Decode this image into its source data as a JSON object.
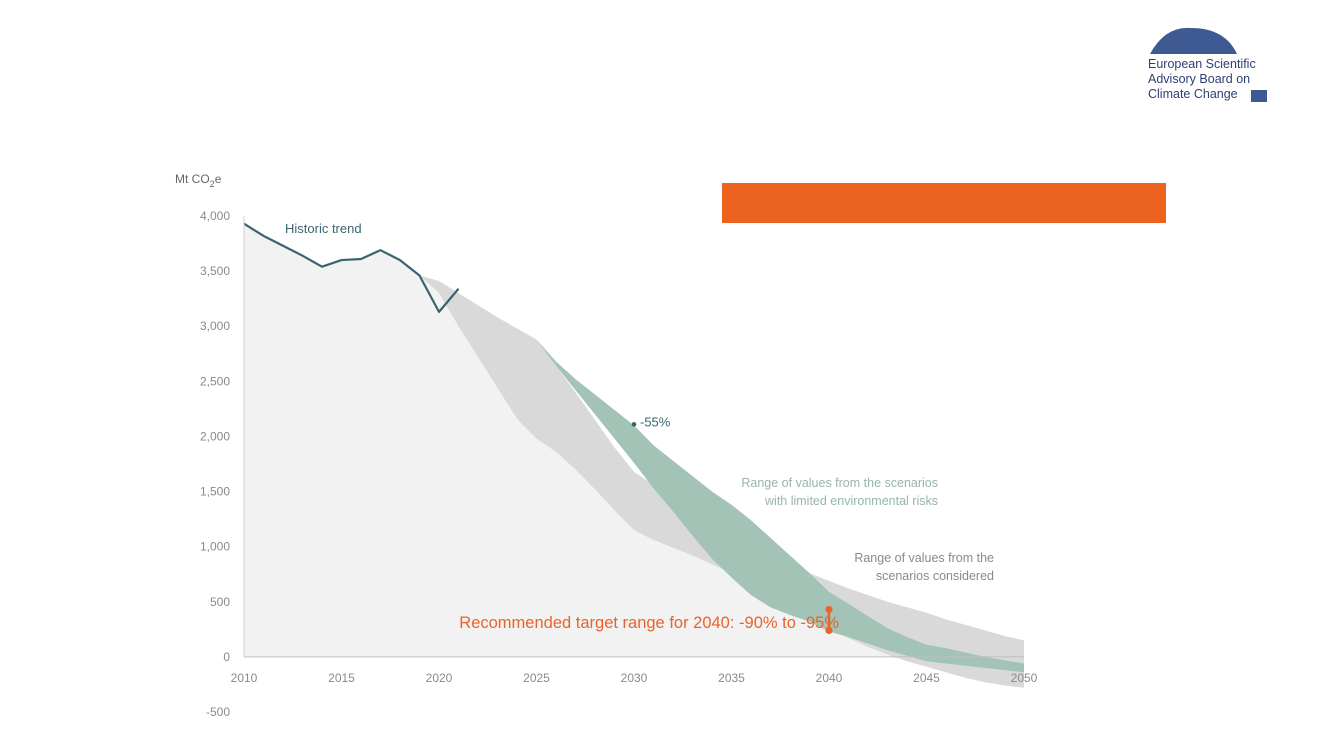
{
  "logo": {
    "lines": [
      "European Scientific",
      "Advisory Board on",
      "Climate Change"
    ],
    "color": "#3f5a93"
  },
  "banner": {
    "color": "#ec6320"
  },
  "chart_data": {
    "type": "area",
    "ylabel": "Mt CO",
    "ylabel_sub": "2",
    "ylabel_suffix": "e",
    "xlim": [
      2010,
      2050
    ],
    "ylim": [
      -500,
      4000
    ],
    "x_ticks": [
      2010,
      2015,
      2020,
      2025,
      2030,
      2035,
      2040,
      2045,
      2050
    ],
    "y_ticks": [
      4000,
      3500,
      3000,
      2500,
      2000,
      1500,
      1000,
      500,
      0,
      -500
    ],
    "y_tick_labels": [
      "4,000",
      "3,500",
      "3,000",
      "2,500",
      "2,000",
      "1,500",
      "1,000",
      "500",
      "0",
      "-500"
    ],
    "colors": {
      "background_area": "#f2f2f2",
      "scenarios_range": "#d9d9d9",
      "limited_risk_range": "#a2c3b6",
      "historic": "#3b6470",
      "target": "#e8642a"
    },
    "historic_trend": {
      "label": "Historic trend",
      "x": [
        2010,
        2011,
        2012,
        2013,
        2014,
        2015,
        2016,
        2017,
        2018,
        2019,
        2020,
        2021
      ],
      "y": [
        3930,
        3820,
        3730,
        3640,
        3540,
        3600,
        3610,
        3690,
        3600,
        3460,
        3130,
        3340
      ]
    },
    "historic_area_lower": 0,
    "scenarios_range": {
      "label_lines": [
        "Range of values from the",
        "scenarios considered"
      ],
      "x": [
        2019,
        2020,
        2021,
        2022,
        2023,
        2024,
        2025,
        2026,
        2027,
        2028,
        2029,
        2030,
        2031,
        2032,
        2033,
        2034,
        2035,
        2036,
        2037,
        2038,
        2039,
        2040,
        2041,
        2042,
        2043,
        2044,
        2045,
        2046,
        2047,
        2048,
        2049,
        2050
      ],
      "upper": [
        3460,
        3410,
        3300,
        3190,
        3080,
        2980,
        2880,
        2640,
        2400,
        2150,
        1900,
        1680,
        1560,
        1450,
        1340,
        1230,
        1120,
        1010,
        910,
        830,
        760,
        690,
        620,
        560,
        500,
        450,
        400,
        340,
        290,
        240,
        190,
        150
      ],
      "lower": [
        3460,
        3300,
        3000,
        2720,
        2440,
        2160,
        1980,
        1860,
        1700,
        1520,
        1330,
        1150,
        1060,
        990,
        920,
        840,
        760,
        680,
        600,
        510,
        400,
        260,
        170,
        90,
        20,
        -40,
        -90,
        -140,
        -190,
        -230,
        -260,
        -280
      ]
    },
    "limited_risk_range": {
      "label_lines": [
        "Range of values from the scenarios",
        "with limited environmental risks"
      ],
      "x": [
        2025,
        2026,
        2027,
        2028,
        2029,
        2030,
        2031,
        2032,
        2033,
        2034,
        2035,
        2036,
        2037,
        2038,
        2039,
        2040,
        2041,
        2042,
        2043,
        2044,
        2045,
        2046,
        2047,
        2048,
        2049,
        2050
      ],
      "upper": [
        2880,
        2680,
        2520,
        2380,
        2240,
        2100,
        1920,
        1780,
        1640,
        1500,
        1380,
        1240,
        1080,
        920,
        760,
        590,
        480,
        370,
        260,
        180,
        110,
        80,
        40,
        0,
        -30,
        -60
      ],
      "lower": [
        2880,
        2640,
        2420,
        2200,
        1980,
        1760,
        1530,
        1320,
        1100,
        890,
        720,
        560,
        450,
        380,
        320,
        230,
        180,
        120,
        60,
        10,
        -40,
        -60,
        -80,
        -100,
        -120,
        -140
      ]
    },
    "marker_2030": {
      "x": 2030,
      "y": 2110,
      "label": "-55%"
    },
    "target_2040": {
      "x": 2040,
      "y_high": 430,
      "y_low": 240,
      "label": "Recommended target range for 2040: -90% to -95%"
    }
  }
}
